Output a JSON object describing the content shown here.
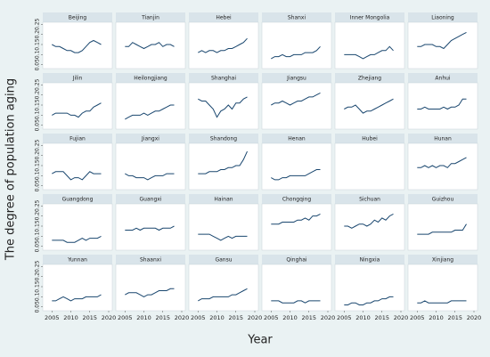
{
  "chart_data": {
    "type": "line",
    "facets": true,
    "xlabel": "Year",
    "ylabel": "The degree of population aging",
    "x": [
      2005,
      2006,
      2007,
      2008,
      2009,
      2010,
      2011,
      2012,
      2013,
      2014,
      2015,
      2016,
      2017,
      2018
    ],
    "xlim": [
      2004,
      2020
    ],
    "xticks": [
      2005,
      2010,
      2015,
      2020
    ],
    "ylim": [
      0.04,
      0.26
    ],
    "yticks": [
      0.05,
      0.1,
      0.15,
      0.2,
      0.25
    ],
    "series": [
      {
        "name": "Beijing",
        "color": "#1a476f",
        "values": [
          0.15,
          0.14,
          0.14,
          0.13,
          0.12,
          0.12,
          0.11,
          0.11,
          0.12,
          0.14,
          0.16,
          0.17,
          0.16,
          0.15
        ]
      },
      {
        "name": "Tianjin",
        "color": "#1a476f",
        "values": [
          0.14,
          0.14,
          0.16,
          0.15,
          0.14,
          0.13,
          0.14,
          0.15,
          0.15,
          0.16,
          0.14,
          0.15,
          0.15,
          0.14
        ]
      },
      {
        "name": "Hebei",
        "color": "#1a476f",
        "values": [
          0.11,
          0.12,
          0.11,
          0.12,
          0.12,
          0.11,
          0.12,
          0.12,
          0.13,
          0.13,
          0.14,
          0.15,
          0.16,
          0.18
        ]
      },
      {
        "name": "Shanxi",
        "color": "#1a476f",
        "values": [
          0.08,
          0.09,
          0.09,
          0.1,
          0.09,
          0.09,
          0.1,
          0.1,
          0.1,
          0.11,
          0.11,
          0.11,
          0.12,
          0.14
        ]
      },
      {
        "name": "Inner Mongolia",
        "color": "#1a476f",
        "values": [
          0.1,
          0.1,
          0.1,
          0.1,
          0.09,
          0.08,
          0.09,
          0.1,
          0.1,
          0.11,
          0.12,
          0.12,
          0.14,
          0.12
        ]
      },
      {
        "name": "Liaoning",
        "color": "#1a476f",
        "values": [
          0.14,
          0.14,
          0.15,
          0.15,
          0.15,
          0.14,
          0.14,
          0.13,
          0.15,
          0.17,
          0.18,
          0.19,
          0.2,
          0.21
        ]
      },
      {
        "name": "Jilin",
        "color": "#1a476f",
        "values": [
          0.1,
          0.11,
          0.11,
          0.11,
          0.11,
          0.1,
          0.1,
          0.09,
          0.11,
          0.12,
          0.12,
          0.14,
          0.15,
          0.16
        ]
      },
      {
        "name": "Heilongjiang",
        "color": "#1a476f",
        "values": [
          0.08,
          0.09,
          0.1,
          0.1,
          0.1,
          0.11,
          0.1,
          0.11,
          0.12,
          0.12,
          0.13,
          0.14,
          0.15,
          0.15
        ]
      },
      {
        "name": "Shanghai",
        "color": "#1a476f",
        "values": [
          0.18,
          0.17,
          0.17,
          0.15,
          0.13,
          0.09,
          0.12,
          0.13,
          0.15,
          0.13,
          0.16,
          0.16,
          0.18,
          0.19
        ]
      },
      {
        "name": "Jiangsu",
        "color": "#1a476f",
        "values": [
          0.15,
          0.16,
          0.16,
          0.17,
          0.16,
          0.15,
          0.16,
          0.17,
          0.17,
          0.18,
          0.19,
          0.19,
          0.2,
          0.21
        ]
      },
      {
        "name": "Zhejiang",
        "color": "#1a476f",
        "values": [
          0.13,
          0.14,
          0.14,
          0.15,
          0.13,
          0.11,
          0.12,
          0.12,
          0.13,
          0.14,
          0.15,
          0.16,
          0.17,
          0.18
        ]
      },
      {
        "name": "Anhui",
        "color": "#1a476f",
        "values": [
          0.13,
          0.13,
          0.14,
          0.13,
          0.13,
          0.13,
          0.13,
          0.14,
          0.13,
          0.14,
          0.14,
          0.15,
          0.18,
          0.18
        ]
      },
      {
        "name": "Fujian",
        "color": "#1a476f",
        "values": [
          0.11,
          0.12,
          0.12,
          0.12,
          0.1,
          0.08,
          0.09,
          0.09,
          0.08,
          0.1,
          0.12,
          0.11,
          0.11,
          0.11
        ]
      },
      {
        "name": "Jiangxi",
        "color": "#1a476f",
        "values": [
          0.11,
          0.1,
          0.1,
          0.09,
          0.09,
          0.09,
          0.08,
          0.09,
          0.1,
          0.1,
          0.1,
          0.11,
          0.11,
          0.11
        ]
      },
      {
        "name": "Shandong",
        "color": "#1a476f",
        "values": [
          0.11,
          0.11,
          0.11,
          0.12,
          0.12,
          0.12,
          0.13,
          0.13,
          0.14,
          0.14,
          0.15,
          0.15,
          0.18,
          0.22
        ]
      },
      {
        "name": "Henan",
        "color": "#1a476f",
        "values": [
          0.09,
          0.08,
          0.08,
          0.09,
          0.09,
          0.1,
          0.1,
          0.1,
          0.1,
          0.1,
          0.11,
          0.12,
          0.13,
          0.13
        ]
      },
      {
        "name": "Hubei",
        "color": "#1a476f",
        "values": [
          null,
          null,
          null,
          null,
          null,
          null,
          null,
          null,
          null,
          null,
          null,
          null,
          null,
          null
        ]
      },
      {
        "name": "Hunan",
        "color": "#1a476f",
        "values": [
          0.14,
          0.14,
          0.15,
          0.14,
          0.15,
          0.14,
          0.15,
          0.15,
          0.14,
          0.16,
          0.16,
          0.17,
          0.18,
          0.19
        ]
      },
      {
        "name": "Guangdong",
        "color": "#1a476f",
        "values": [
          0.08,
          0.08,
          0.08,
          0.08,
          0.07,
          0.07,
          0.07,
          0.08,
          0.09,
          0.08,
          0.09,
          0.09,
          0.09,
          0.1
        ]
      },
      {
        "name": "Guangxi",
        "color": "#1a476f",
        "values": [
          0.13,
          0.13,
          0.13,
          0.14,
          0.13,
          0.14,
          0.14,
          0.14,
          0.14,
          0.13,
          0.14,
          0.14,
          0.14,
          0.15
        ]
      },
      {
        "name": "Hainan",
        "color": "#1a476f",
        "values": [
          0.11,
          0.11,
          0.11,
          0.11,
          0.1,
          0.09,
          0.08,
          0.09,
          0.1,
          0.09,
          0.1,
          0.1,
          0.1,
          0.1
        ]
      },
      {
        "name": "Chongqing",
        "color": "#1a476f",
        "values": [
          0.16,
          0.16,
          0.16,
          0.17,
          0.17,
          0.17,
          0.17,
          0.18,
          0.18,
          0.19,
          0.18,
          0.2,
          0.2,
          0.21
        ]
      },
      {
        "name": "Sichuan",
        "color": "#1a476f",
        "values": [
          0.15,
          0.15,
          0.14,
          0.15,
          0.16,
          0.16,
          0.15,
          0.16,
          0.18,
          0.17,
          0.19,
          0.18,
          0.2,
          0.21
        ]
      },
      {
        "name": "Guizhou",
        "color": "#1a476f",
        "values": [
          0.11,
          0.11,
          0.11,
          0.11,
          0.12,
          0.12,
          0.12,
          0.12,
          0.12,
          0.12,
          0.13,
          0.13,
          0.13,
          0.16
        ]
      },
      {
        "name": "Yunnan",
        "color": "#1a476f",
        "values": [
          0.08,
          0.08,
          0.09,
          0.1,
          0.09,
          0.08,
          0.09,
          0.09,
          0.09,
          0.1,
          0.1,
          0.1,
          0.1,
          0.11
        ]
      },
      {
        "name": "Shaanxi",
        "color": "#1a476f",
        "values": [
          0.11,
          0.12,
          0.12,
          0.12,
          0.11,
          0.1,
          0.11,
          0.11,
          0.12,
          0.13,
          0.13,
          0.13,
          0.14,
          0.14
        ]
      },
      {
        "name": "Gansu",
        "color": "#1a476f",
        "values": [
          0.08,
          0.09,
          0.09,
          0.09,
          0.1,
          0.1,
          0.1,
          0.1,
          0.1,
          0.11,
          0.11,
          0.12,
          0.13,
          0.14
        ]
      },
      {
        "name": "Qinghai",
        "color": "#1a476f",
        "values": [
          0.08,
          0.08,
          0.08,
          0.07,
          0.07,
          0.07,
          0.07,
          0.08,
          0.08,
          0.07,
          0.08,
          0.08,
          0.08,
          0.08
        ]
      },
      {
        "name": "Ningxia",
        "color": "#1a476f",
        "values": [
          0.06,
          0.06,
          0.07,
          0.07,
          0.06,
          0.06,
          0.07,
          0.07,
          0.08,
          0.08,
          0.09,
          0.09,
          0.1,
          0.1
        ]
      },
      {
        "name": "Xinjiang",
        "color": "#1a476f",
        "values": [
          0.07,
          0.07,
          0.08,
          0.07,
          0.07,
          0.07,
          0.07,
          0.07,
          0.07,
          0.08,
          0.08,
          0.08,
          0.08,
          0.08
        ]
      }
    ]
  }
}
